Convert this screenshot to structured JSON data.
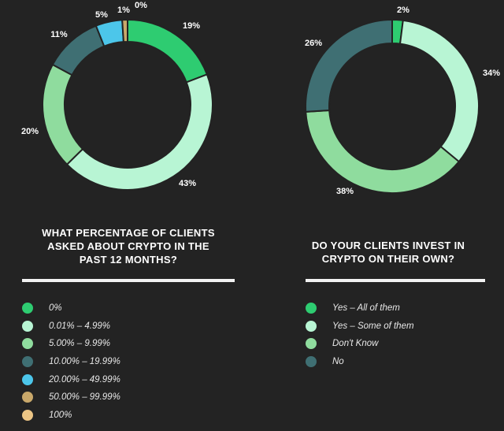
{
  "chart_data": [
    {
      "type": "pie",
      "title_lines": [
        "WHAT PERCENTAGE OF CLIENTS",
        "ASKED ABOUT CRYPTO IN THE",
        "PAST 12 MONTHS?"
      ],
      "categories": [
        "0%",
        "0.01% – 4.99%",
        "5.00% – 9.99%",
        "10.00% – 19.99%",
        "20.00% – 49.99%",
        "50.00% – 99.99%",
        "100%"
      ],
      "values": [
        19,
        43,
        20,
        11,
        5,
        1,
        0
      ],
      "value_labels": [
        "19%",
        "43%",
        "20%",
        "11%",
        "5%",
        "1%",
        "0%"
      ],
      "colors": [
        "#2ecc71",
        "#b8f5d4",
        "#8fdc9e",
        "#3f6f73",
        "#4cc6ea",
        "#c9a86a",
        "#ecc585"
      ],
      "donut": true
    },
    {
      "type": "pie",
      "title_lines": [
        "DO YOUR CLIENTS INVEST IN",
        "CRYPTO ON THEIR OWN?"
      ],
      "categories": [
        "Yes – All of them",
        "Yes – Some of them",
        "Don't Know",
        "No"
      ],
      "values": [
        2,
        34,
        38,
        26
      ],
      "value_labels": [
        "2%",
        "34%",
        "38%",
        "26%"
      ],
      "colors": [
        "#2ecc71",
        "#b8f5d4",
        "#8fdc9e",
        "#3f6f73"
      ],
      "donut": true
    }
  ]
}
